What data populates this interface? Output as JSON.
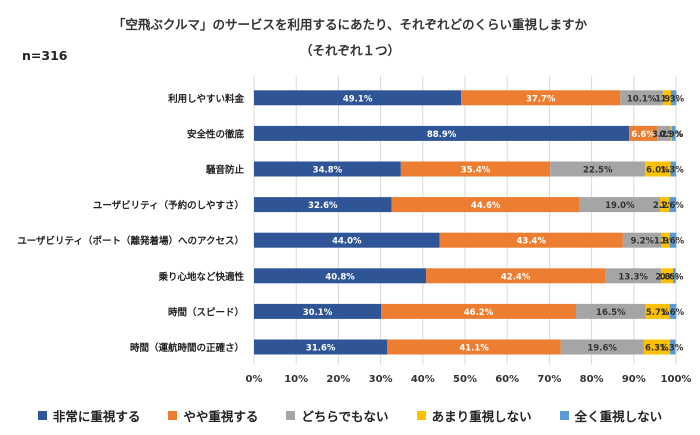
{
  "header": {
    "title_line1": "「空飛ぶクルマ」のサービスを利用するにあたり、それぞれどのくらい重視しますか",
    "title_line2": "（それぞれ１つ）",
    "n_label": "n=316"
  },
  "colors": [
    "#2f5597",
    "#ed7d31",
    "#a5a5a5",
    "#ffc000",
    "#5b9bd5"
  ],
  "chart_data": {
    "type": "bar",
    "orientation": "horizontal",
    "stacked": true,
    "percent": true,
    "xlim": [
      0,
      100
    ],
    "x_ticks": [
      "0%",
      "10%",
      "20%",
      "30%",
      "40%",
      "50%",
      "60%",
      "70%",
      "80%",
      "90%",
      "100%"
    ],
    "grid": true,
    "legend_position": "bottom",
    "categories": [
      "利用しやすい料金",
      "安全性の徹底",
      "騒音防止",
      "ユーザビリティ（予約のしやすさ）",
      "ユーザビリティ（ポート（離発着場）へのアクセス）",
      "乗り心地など快適性",
      "時間（スピード）",
      "時間（運航時間の正確さ）"
    ],
    "series": [
      {
        "name": "非常に重視する",
        "values": [
          49.1,
          88.9,
          34.8,
          32.6,
          44.0,
          40.8,
          30.1,
          31.6
        ]
      },
      {
        "name": "やや重視する",
        "values": [
          37.7,
          6.6,
          35.4,
          44.6,
          43.4,
          42.4,
          46.2,
          41.1
        ]
      },
      {
        "name": "どちらでもない",
        "values": [
          10.1,
          3.2,
          22.5,
          19.0,
          9.2,
          13.3,
          16.5,
          19.6
        ]
      },
      {
        "name": "あまり重視しない",
        "values": [
          1.9,
          0.3,
          6.0,
          2.2,
          1.9,
          2.8,
          5.7,
          6.3
        ]
      },
      {
        "name": "全く重視しない",
        "values": [
          1.3,
          0.9,
          1.3,
          1.6,
          1.6,
          0.6,
          1.6,
          1.3
        ]
      }
    ],
    "data_labels": [
      [
        "49.1%",
        "37.7%",
        "10.1%",
        "1.9%",
        "1.3%"
      ],
      [
        "88.9%",
        "6.6%",
        "3.2%",
        "0.3%",
        "0.9%"
      ],
      [
        "34.8%",
        "35.4%",
        "22.5%",
        "6.0%",
        "1.3%"
      ],
      [
        "32.6%",
        "44.6%",
        "19.0%",
        "2.2%",
        "1.6%"
      ],
      [
        "44.0%",
        "43.4%",
        "9.2%",
        "1.9%",
        "1.6%"
      ],
      [
        "40.8%",
        "42.4%",
        "13.3%",
        "2.8%",
        "0.6%"
      ],
      [
        "30.1%",
        "46.2%",
        "16.5%",
        "5.7%",
        "1.6%"
      ],
      [
        "31.6%",
        "41.1%",
        "19.6%",
        "6.3%",
        "1.3%"
      ]
    ]
  }
}
